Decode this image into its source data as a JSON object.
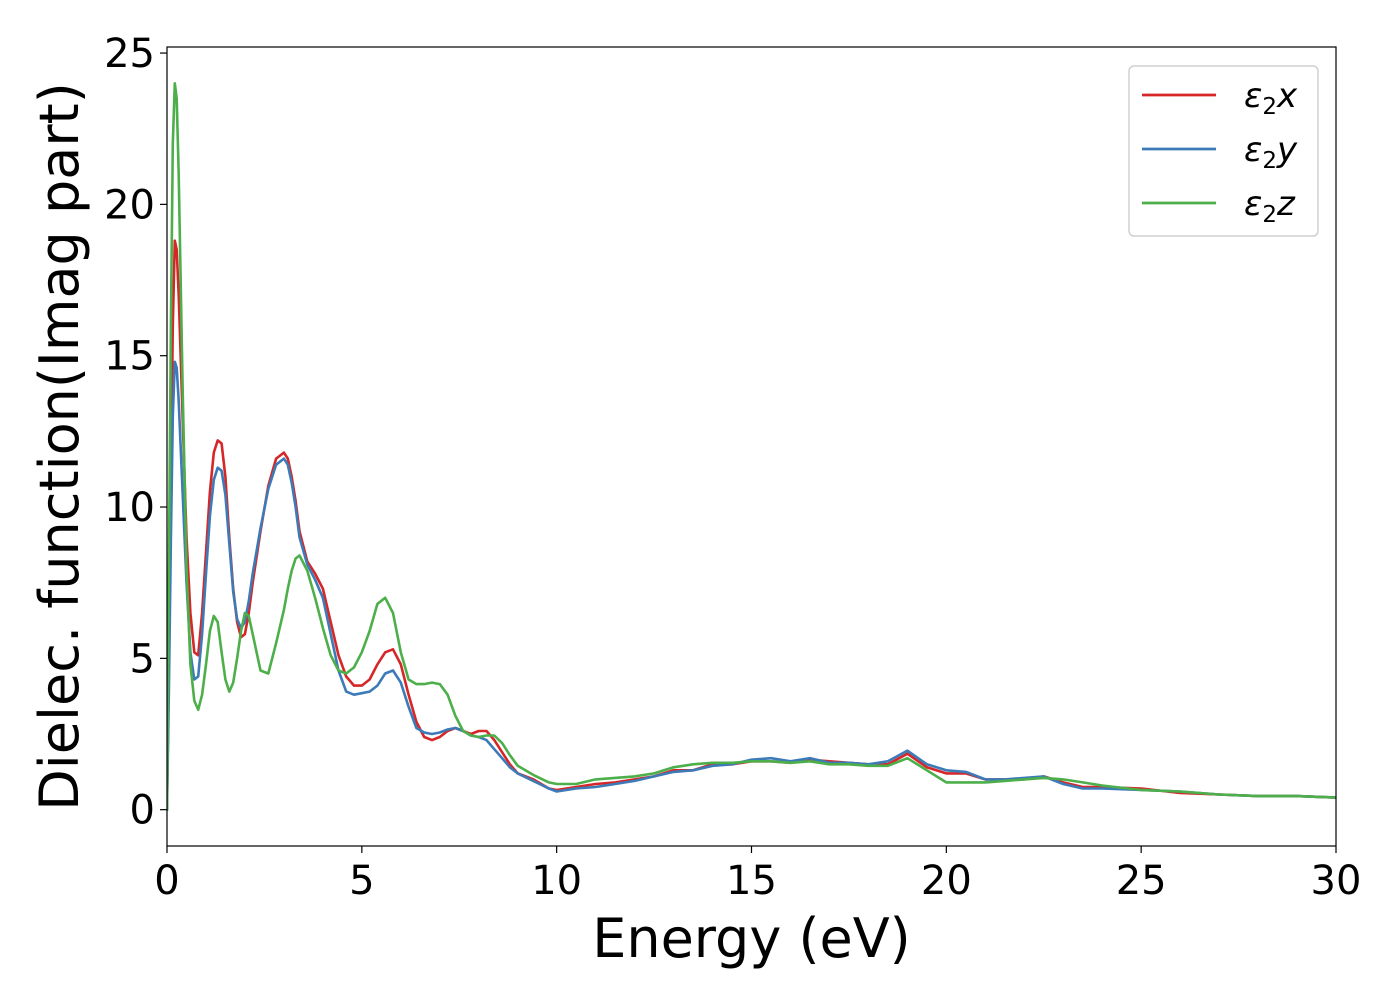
{
  "chart_data": {
    "type": "line",
    "title": "",
    "xlabel": "Energy (eV)",
    "ylabel": "Dielec. function(Imag part)",
    "xlim": [
      0,
      30
    ],
    "ylim": [
      -1.2,
      25.2
    ],
    "xticks": [
      0,
      5,
      10,
      15,
      20,
      25,
      30
    ],
    "yticks": [
      0,
      5,
      10,
      15,
      20,
      25
    ],
    "grid": false,
    "legend_position": "top-right",
    "series": [
      {
        "name": "ε₂x",
        "legend_main": "ε",
        "legend_sub": "2",
        "legend_suffix": "x",
        "color": "#d62728",
        "x": [
          0,
          0.05,
          0.1,
          0.15,
          0.2,
          0.25,
          0.3,
          0.4,
          0.5,
          0.6,
          0.7,
          0.8,
          0.9,
          1.0,
          1.1,
          1.2,
          1.3,
          1.4,
          1.5,
          1.6,
          1.7,
          1.8,
          1.9,
          2.0,
          2.1,
          2.2,
          2.4,
          2.6,
          2.8,
          3.0,
          3.1,
          3.2,
          3.3,
          3.4,
          3.6,
          3.8,
          4.0,
          4.2,
          4.4,
          4.6,
          4.8,
          5.0,
          5.2,
          5.4,
          5.6,
          5.8,
          6.0,
          6.2,
          6.4,
          6.6,
          6.8,
          7.0,
          7.2,
          7.4,
          7.6,
          7.8,
          8.0,
          8.2,
          8.4,
          8.6,
          8.8,
          9.0,
          9.4,
          9.8,
          10.0,
          10.5,
          11,
          11.5,
          12,
          12.5,
          13,
          13.5,
          14,
          14.5,
          15,
          15.5,
          16,
          16.5,
          17,
          17.5,
          18,
          18.5,
          19,
          19.5,
          20,
          20.5,
          21,
          21.5,
          22,
          22.5,
          23,
          23.5,
          24,
          25,
          26,
          27,
          28,
          29,
          30
        ],
        "y": [
          0,
          5,
          11,
          16,
          18.8,
          18.5,
          17,
          13,
          9,
          6.5,
          5.2,
          5.1,
          6.5,
          8.5,
          10.5,
          11.8,
          12.2,
          12.1,
          11,
          9,
          7.3,
          6.2,
          5.7,
          5.8,
          6.5,
          7.5,
          9.2,
          10.7,
          11.6,
          11.8,
          11.6,
          11,
          10.2,
          9.2,
          8.2,
          7.8,
          7.3,
          6.2,
          5.1,
          4.4,
          4.1,
          4.1,
          4.3,
          4.8,
          5.2,
          5.3,
          4.8,
          3.8,
          2.9,
          2.4,
          2.3,
          2.4,
          2.6,
          2.7,
          2.6,
          2.5,
          2.6,
          2.6,
          2.3,
          1.9,
          1.5,
          1.2,
          1.0,
          0.7,
          0.65,
          0.75,
          0.85,
          0.9,
          1.0,
          1.1,
          1.3,
          1.3,
          1.5,
          1.5,
          1.6,
          1.6,
          1.55,
          1.65,
          1.6,
          1.55,
          1.5,
          1.5,
          1.85,
          1.4,
          1.2,
          1.2,
          1.0,
          1.0,
          1.0,
          1.1,
          0.9,
          0.75,
          0.75,
          0.7,
          0.55,
          0.5,
          0.45,
          0.45,
          0.4
        ]
      },
      {
        "name": "ε₂y",
        "legend_main": "ε",
        "legend_sub": "2",
        "legend_suffix": "y",
        "color": "#3d7ab8",
        "x": [
          0,
          0.05,
          0.1,
          0.15,
          0.2,
          0.25,
          0.3,
          0.4,
          0.5,
          0.6,
          0.7,
          0.8,
          0.9,
          1.0,
          1.1,
          1.2,
          1.3,
          1.4,
          1.5,
          1.6,
          1.7,
          1.8,
          1.9,
          2.0,
          2.1,
          2.2,
          2.4,
          2.6,
          2.8,
          3.0,
          3.1,
          3.2,
          3.3,
          3.4,
          3.6,
          3.8,
          4.0,
          4.2,
          4.4,
          4.6,
          4.8,
          5.0,
          5.2,
          5.4,
          5.6,
          5.8,
          6.0,
          6.2,
          6.4,
          6.6,
          6.8,
          7.0,
          7.2,
          7.4,
          7.6,
          7.8,
          8.0,
          8.2,
          8.4,
          8.6,
          8.8,
          9.0,
          9.4,
          9.8,
          10.0,
          10.5,
          11,
          11.5,
          12,
          12.5,
          13,
          13.5,
          14,
          14.5,
          15,
          15.5,
          16,
          16.5,
          17,
          17.5,
          18,
          18.5,
          19,
          19.5,
          20,
          20.5,
          21,
          21.5,
          22,
          22.5,
          23,
          23.5,
          24,
          25,
          26,
          27,
          28,
          29,
          30
        ],
        "y": [
          0,
          4,
          9,
          13,
          14.8,
          14.6,
          13.5,
          10.5,
          7.5,
          5.2,
          4.3,
          4.4,
          5.8,
          7.8,
          9.7,
          10.9,
          11.3,
          11.2,
          10.4,
          8.8,
          7.2,
          6.3,
          6.0,
          6.2,
          6.9,
          7.8,
          9.3,
          10.6,
          11.4,
          11.6,
          11.4,
          10.8,
          10,
          9,
          8.1,
          7.6,
          7.0,
          5.8,
          4.6,
          3.9,
          3.8,
          3.85,
          3.9,
          4.1,
          4.5,
          4.6,
          4.2,
          3.4,
          2.7,
          2.55,
          2.5,
          2.55,
          2.65,
          2.7,
          2.6,
          2.45,
          2.4,
          2.3,
          2.0,
          1.7,
          1.4,
          1.2,
          0.95,
          0.7,
          0.6,
          0.7,
          0.75,
          0.85,
          0.95,
          1.1,
          1.25,
          1.3,
          1.45,
          1.5,
          1.65,
          1.7,
          1.6,
          1.7,
          1.55,
          1.55,
          1.5,
          1.6,
          1.95,
          1.5,
          1.3,
          1.25,
          1.0,
          1.0,
          1.05,
          1.1,
          0.85,
          0.7,
          0.7,
          0.65,
          0.6,
          0.5,
          0.45,
          0.45,
          0.4
        ]
      },
      {
        "name": "ε₂z",
        "legend_main": "ε",
        "legend_sub": "2",
        "legend_suffix": "z",
        "color": "#4daf4a",
        "x": [
          0,
          0.05,
          0.1,
          0.15,
          0.2,
          0.25,
          0.3,
          0.4,
          0.5,
          0.6,
          0.7,
          0.8,
          0.9,
          1.0,
          1.1,
          1.2,
          1.3,
          1.4,
          1.5,
          1.6,
          1.7,
          1.8,
          1.9,
          2.0,
          2.1,
          2.2,
          2.4,
          2.6,
          2.8,
          3.0,
          3.1,
          3.2,
          3.3,
          3.4,
          3.6,
          3.8,
          4.0,
          4.2,
          4.4,
          4.6,
          4.8,
          5.0,
          5.2,
          5.4,
          5.6,
          5.8,
          6.0,
          6.2,
          6.4,
          6.6,
          6.8,
          7.0,
          7.2,
          7.4,
          7.6,
          7.8,
          8.0,
          8.2,
          8.4,
          8.6,
          8.8,
          9.0,
          9.4,
          9.8,
          10.0,
          10.5,
          11,
          11.5,
          12,
          12.5,
          13,
          13.5,
          14,
          14.5,
          15,
          15.5,
          16,
          16.5,
          17,
          17.5,
          18,
          18.5,
          19,
          19.5,
          20,
          20.5,
          21,
          21.5,
          22,
          22.5,
          23,
          23.5,
          24,
          25,
          26,
          27,
          28,
          29,
          30
        ],
        "y": [
          0,
          8,
          16,
          22,
          24,
          23.5,
          21,
          14,
          8,
          4.8,
          3.6,
          3.3,
          3.8,
          4.8,
          5.9,
          6.4,
          6.2,
          5.2,
          4.3,
          3.9,
          4.2,
          5.0,
          5.9,
          6.5,
          6.4,
          5.8,
          4.6,
          4.5,
          5.5,
          6.6,
          7.3,
          7.9,
          8.3,
          8.4,
          7.9,
          7.0,
          6.0,
          5.1,
          4.6,
          4.5,
          4.7,
          5.2,
          5.9,
          6.8,
          7.0,
          6.5,
          5.2,
          4.3,
          4.15,
          4.15,
          4.2,
          4.15,
          3.8,
          3.1,
          2.6,
          2.45,
          2.4,
          2.45,
          2.45,
          2.2,
          1.8,
          1.45,
          1.15,
          0.9,
          0.85,
          0.85,
          1.0,
          1.05,
          1.1,
          1.2,
          1.4,
          1.5,
          1.55,
          1.55,
          1.6,
          1.6,
          1.55,
          1.6,
          1.5,
          1.5,
          1.45,
          1.45,
          1.7,
          1.3,
          0.9,
          0.9,
          0.9,
          0.95,
          1.0,
          1.05,
          1.0,
          0.9,
          0.8,
          0.65,
          0.6,
          0.5,
          0.45,
          0.45,
          0.4
        ]
      }
    ]
  }
}
